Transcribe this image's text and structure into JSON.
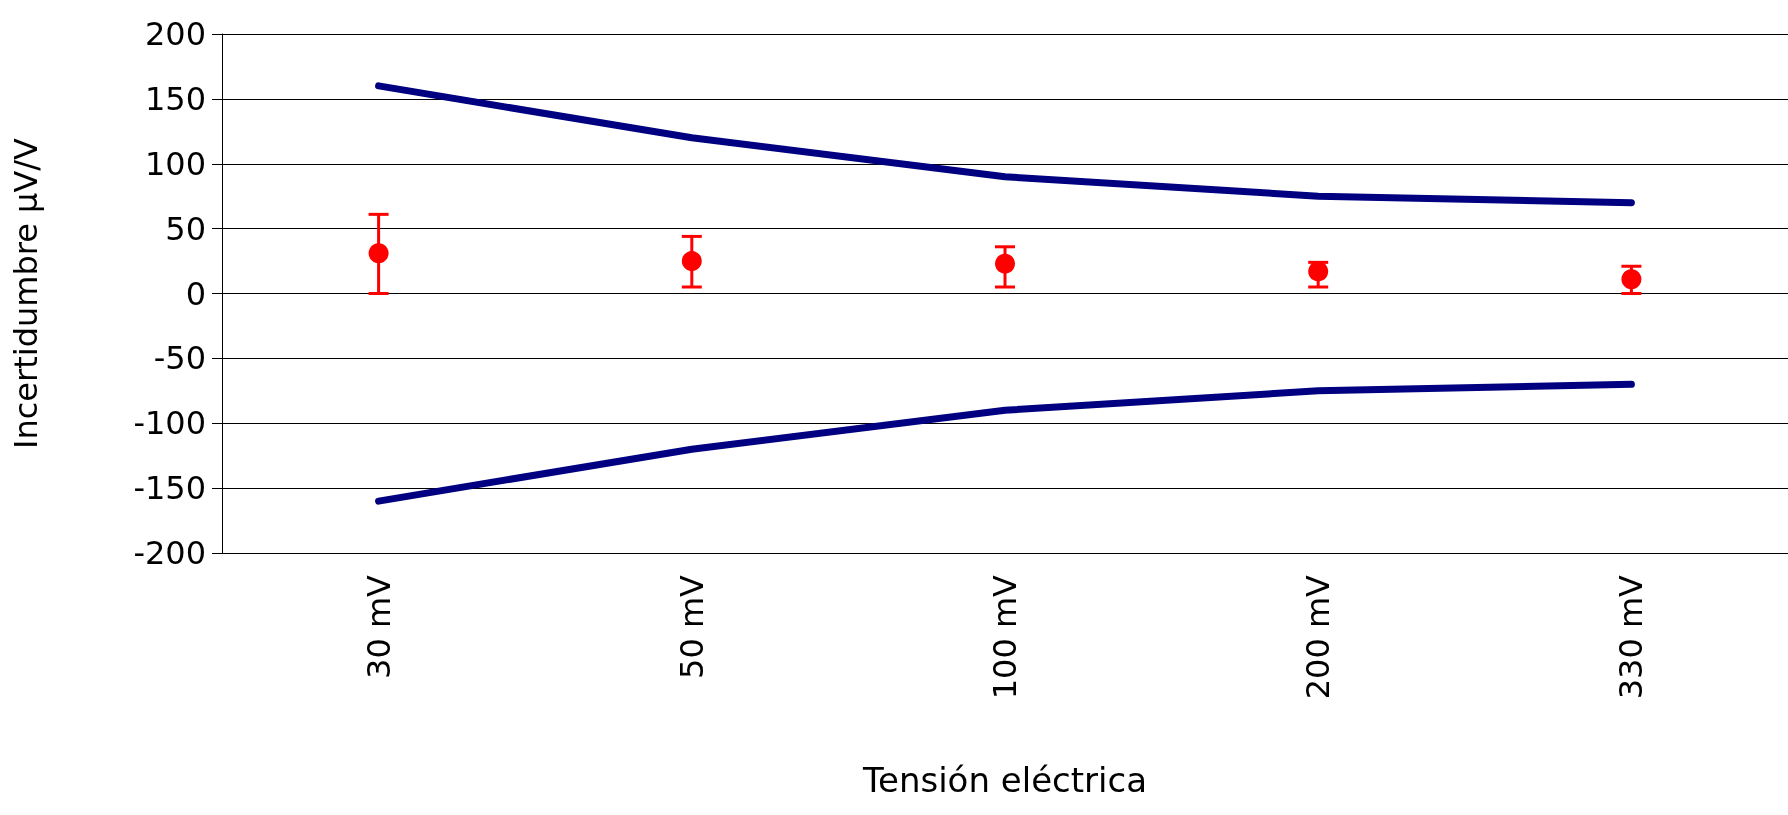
{
  "chart_data": {
    "type": "line",
    "xlabel": "Tensión eléctrica",
    "ylabel": "Incertidumbre µV/V",
    "categories": [
      "30 mV",
      "50 mV",
      "100 mV",
      "200 mV",
      "330 mV"
    ],
    "series": [
      {
        "color": "#000080",
        "values": [
          160,
          120,
          90,
          75,
          70
        ],
        "marker": "none"
      },
      {
        "color": "#000080",
        "values": [
          -160,
          -120,
          -90,
          -75,
          -70
        ],
        "marker": "none"
      },
      {
        "type": "scatter",
        "color": "#ff0000",
        "values": [
          31,
          25,
          23,
          17,
          11
        ],
        "marker": "circle",
        "errors": [
          [
            0,
            61
          ],
          [
            5,
            44
          ],
          [
            5,
            36
          ],
          [
            5,
            24
          ],
          [
            0,
            21
          ]
        ]
      }
    ],
    "ylim": [
      -200,
      200
    ],
    "yticks": [
      -200,
      -150,
      -100,
      -50,
      0,
      50,
      100,
      150,
      200
    ],
    "grid": "y"
  }
}
